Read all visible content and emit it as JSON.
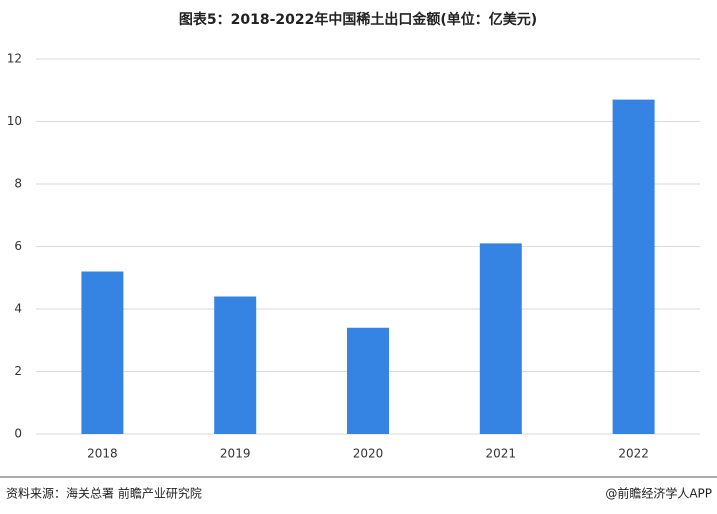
{
  "chart_data": {
    "type": "bar",
    "title": "图表5：2018-2022年中国稀土出口金额(单位：亿美元)",
    "categories": [
      "2018",
      "2019",
      "2020",
      "2021",
      "2022"
    ],
    "values": [
      5.2,
      4.4,
      3.4,
      6.1,
      10.7
    ],
    "color": "#3584e4",
    "ylim": [
      0,
      12
    ],
    "yticks": [
      0,
      2,
      4,
      6,
      8,
      10,
      12
    ],
    "grid": true,
    "source": "资料来源：海关总署 前瞻产业研究院",
    "credit": "@前瞻经济学人APP"
  }
}
